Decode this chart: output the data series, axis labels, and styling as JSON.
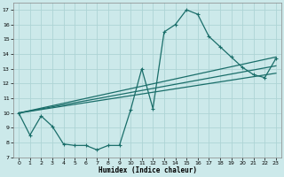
{
  "title": "",
  "xlabel": "Humidex (Indice chaleur)",
  "background_color": "#cce9ea",
  "grid_color": "#aed4d5",
  "line_color": "#1a6e6a",
  "xlim": [
    -0.5,
    23.5
  ],
  "ylim": [
    7,
    17.5
  ],
  "xticks": [
    0,
    1,
    2,
    3,
    4,
    5,
    6,
    7,
    8,
    9,
    10,
    11,
    12,
    13,
    14,
    15,
    16,
    17,
    18,
    19,
    20,
    21,
    22,
    23
  ],
  "yticks": [
    7,
    8,
    9,
    10,
    11,
    12,
    13,
    14,
    15,
    16,
    17
  ],
  "line1_x": [
    0,
    1,
    2,
    3,
    4,
    5,
    6,
    7,
    8,
    9,
    10,
    11,
    12,
    13,
    14,
    15,
    16,
    17,
    18,
    19,
    20,
    21,
    22,
    23
  ],
  "line1_y": [
    10.0,
    8.5,
    9.8,
    9.1,
    7.9,
    7.8,
    7.8,
    7.5,
    7.8,
    7.8,
    10.2,
    13.0,
    10.3,
    15.5,
    16.0,
    17.0,
    16.7,
    15.2,
    14.5,
    13.8,
    13.1,
    12.6,
    12.4,
    13.7
  ],
  "line2_x": [
    0,
    23
  ],
  "line2_y": [
    10.0,
    13.8
  ],
  "line3_x": [
    0,
    23
  ],
  "line3_y": [
    10.0,
    13.2
  ],
  "line4_x": [
    0,
    23
  ],
  "line4_y": [
    10.0,
    12.7
  ]
}
